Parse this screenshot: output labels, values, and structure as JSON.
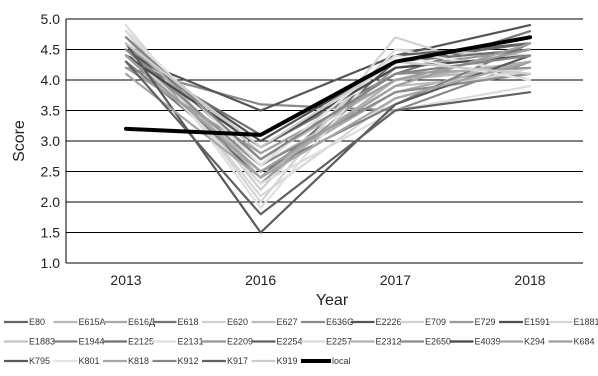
{
  "chart_data": {
    "type": "line",
    "title": "",
    "xlabel": "Year",
    "ylabel": "Score",
    "categories": [
      "2013",
      "2016",
      "2017",
      "2018"
    ],
    "ylim": [
      1.0,
      5.0
    ],
    "yticks": [
      "1.0",
      "1.5",
      "2.0",
      "2.5",
      "3.0",
      "3.5",
      "4.0",
      "4.5",
      "5.0"
    ],
    "grid": "horizontal",
    "legend_position": "bottom",
    "series": [
      {
        "name": "E80",
        "values": [
          4.4,
          2.4,
          4.3,
          4.6
        ],
        "color": "#666666"
      },
      {
        "name": "E615A",
        "values": [
          4.7,
          2.7,
          4.0,
          4.2
        ],
        "color": "#b8b8b8"
      },
      {
        "name": "E616Д",
        "values": [
          4.5,
          2.5,
          3.8,
          4.3
        ],
        "color": "#a9a9a9"
      },
      {
        "name": "E618",
        "values": [
          4.6,
          2.9,
          4.1,
          4.8
        ],
        "color": "#777777"
      },
      {
        "name": "E620",
        "values": [
          4.9,
          2.2,
          4.5,
          4.4
        ],
        "color": "#cfcfcf"
      },
      {
        "name": "E627",
        "values": [
          4.3,
          2.6,
          3.9,
          4.1
        ],
        "color": "#bdbdbd"
      },
      {
        "name": "E636C",
        "values": [
          4.2,
          3.6,
          3.5,
          4.3
        ],
        "color": "#8a8a8a"
      },
      {
        "name": "E2226",
        "values": [
          4.4,
          3.5,
          4.4,
          4.9
        ],
        "color": "#555555"
      },
      {
        "name": "E709",
        "values": [
          4.9,
          2.0,
          4.7,
          4.0
        ],
        "color": "#d3d3d3"
      },
      {
        "name": "E729",
        "values": [
          4.6,
          2.3,
          4.2,
          4.5
        ],
        "color": "#9a9a9a"
      },
      {
        "name": "E1591",
        "values": [
          4.5,
          3.0,
          4.3,
          4.7
        ],
        "color": "#505050"
      },
      {
        "name": "E1881",
        "values": [
          4.8,
          2.1,
          3.7,
          4.2
        ],
        "color": "#d6d6d6"
      },
      {
        "name": "E1883",
        "values": [
          4.7,
          2.8,
          4.0,
          4.3
        ],
        "color": "#c4c4c4"
      },
      {
        "name": "E1944",
        "values": [
          4.3,
          2.5,
          3.6,
          4.6
        ],
        "color": "#808080"
      },
      {
        "name": "E2125",
        "values": [
          4.4,
          3.1,
          4.3,
          4.5
        ],
        "color": "#707070"
      },
      {
        "name": "E2131",
        "values": [
          4.9,
          1.9,
          4.5,
          4.1
        ],
        "color": "#e0e0e0"
      },
      {
        "name": "E2209",
        "values": [
          4.6,
          2.7,
          4.1,
          4.2
        ],
        "color": "#949494"
      },
      {
        "name": "E2254",
        "values": [
          4.8,
          2.6,
          4.4,
          4.6
        ],
        "color": "#606060"
      },
      {
        "name": "E2257",
        "values": [
          4.5,
          2.3,
          3.5,
          3.9
        ],
        "color": "#dcdcdc"
      },
      {
        "name": "E2312",
        "values": [
          4.7,
          2.4,
          4.0,
          4.3
        ],
        "color": "#b0b0b0"
      },
      {
        "name": "E2650",
        "values": [
          4.5,
          2.6,
          3.8,
          4.1
        ],
        "color": "#8c8c8c"
      },
      {
        "name": "E4039",
        "values": [
          4.4,
          2.9,
          4.2,
          4.4
        ],
        "color": "#484848"
      },
      {
        "name": "K294",
        "values": [
          4.4,
          2.5,
          3.9,
          4.6
        ],
        "color": "#a0a0a0"
      },
      {
        "name": "K684",
        "values": [
          4.2,
          2.8,
          4.0,
          4.5
        ],
        "color": "#9e9e9e"
      },
      {
        "name": "K795",
        "values": [
          4.6,
          1.5,
          3.6,
          4.4
        ],
        "color": "#5a5a5a"
      },
      {
        "name": "K801",
        "values": [
          4.8,
          2.6,
          4.4,
          4.0
        ],
        "color": "#e3e3e3"
      },
      {
        "name": "K818",
        "values": [
          4.1,
          2.4,
          3.7,
          4.3
        ],
        "color": "#a6a6a6"
      },
      {
        "name": "K912",
        "values": [
          4.7,
          2.7,
          4.1,
          4.4
        ],
        "color": "#868686"
      },
      {
        "name": "K917",
        "values": [
          4.3,
          1.8,
          3.5,
          3.8
        ],
        "color": "#626262"
      },
      {
        "name": "K919",
        "values": [
          4.6,
          2.9,
          4.3,
          4.1
        ],
        "color": "#cccccc"
      },
      {
        "name": "local",
        "values": [
          3.2,
          3.1,
          4.3,
          4.7
        ],
        "color": "#000000",
        "bold": true
      }
    ]
  }
}
